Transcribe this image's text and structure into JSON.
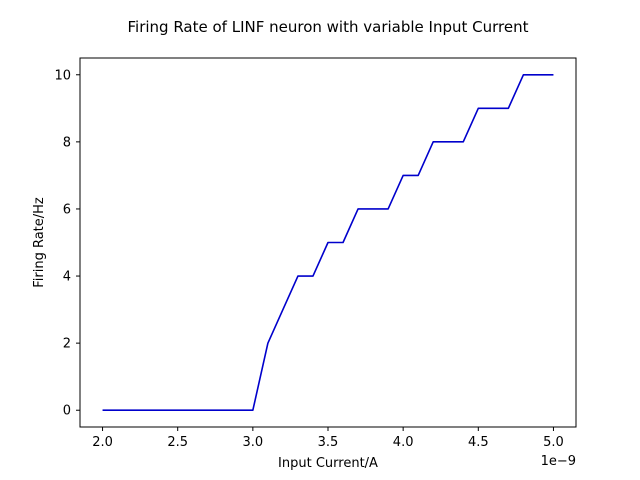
{
  "chart_data": {
    "type": "line",
    "title": "Firing Rate of LINF neuron with variable Input Current",
    "xlabel": "Input Current/A",
    "ylabel": "Firing Rate/Hz",
    "x_offset_text": "1e−9",
    "xlim": [
      1.85,
      5.15
    ],
    "ylim": [
      -0.5,
      10.5
    ],
    "x_ticks": [
      2.0,
      2.5,
      3.0,
      3.5,
      4.0,
      4.5,
      5.0
    ],
    "x_tick_labels": [
      "2.0",
      "2.5",
      "3.0",
      "3.5",
      "4.0",
      "4.5",
      "5.0"
    ],
    "y_ticks": [
      0,
      2,
      4,
      6,
      8,
      10
    ],
    "y_tick_labels": [
      "0",
      "2",
      "4",
      "6",
      "8",
      "10"
    ],
    "grid": false,
    "series": [
      {
        "color": "#0000cc",
        "x": [
          2.0,
          2.1,
          2.2,
          2.3,
          2.4,
          2.5,
          2.6,
          2.7,
          2.8,
          2.9,
          3.0,
          3.1,
          3.2,
          3.3,
          3.4,
          3.5,
          3.6,
          3.7,
          3.8,
          3.9,
          4.0,
          4.1,
          4.2,
          4.3,
          4.4,
          4.5,
          4.6,
          4.7,
          4.8,
          4.9,
          5.0
        ],
        "y": [
          0,
          0,
          0,
          0,
          0,
          0,
          0,
          0,
          0,
          0,
          0,
          2,
          3,
          4,
          4,
          5,
          5,
          6,
          6,
          6,
          7,
          7,
          8,
          8,
          8,
          9,
          9,
          9,
          10,
          10,
          10
        ]
      }
    ]
  }
}
